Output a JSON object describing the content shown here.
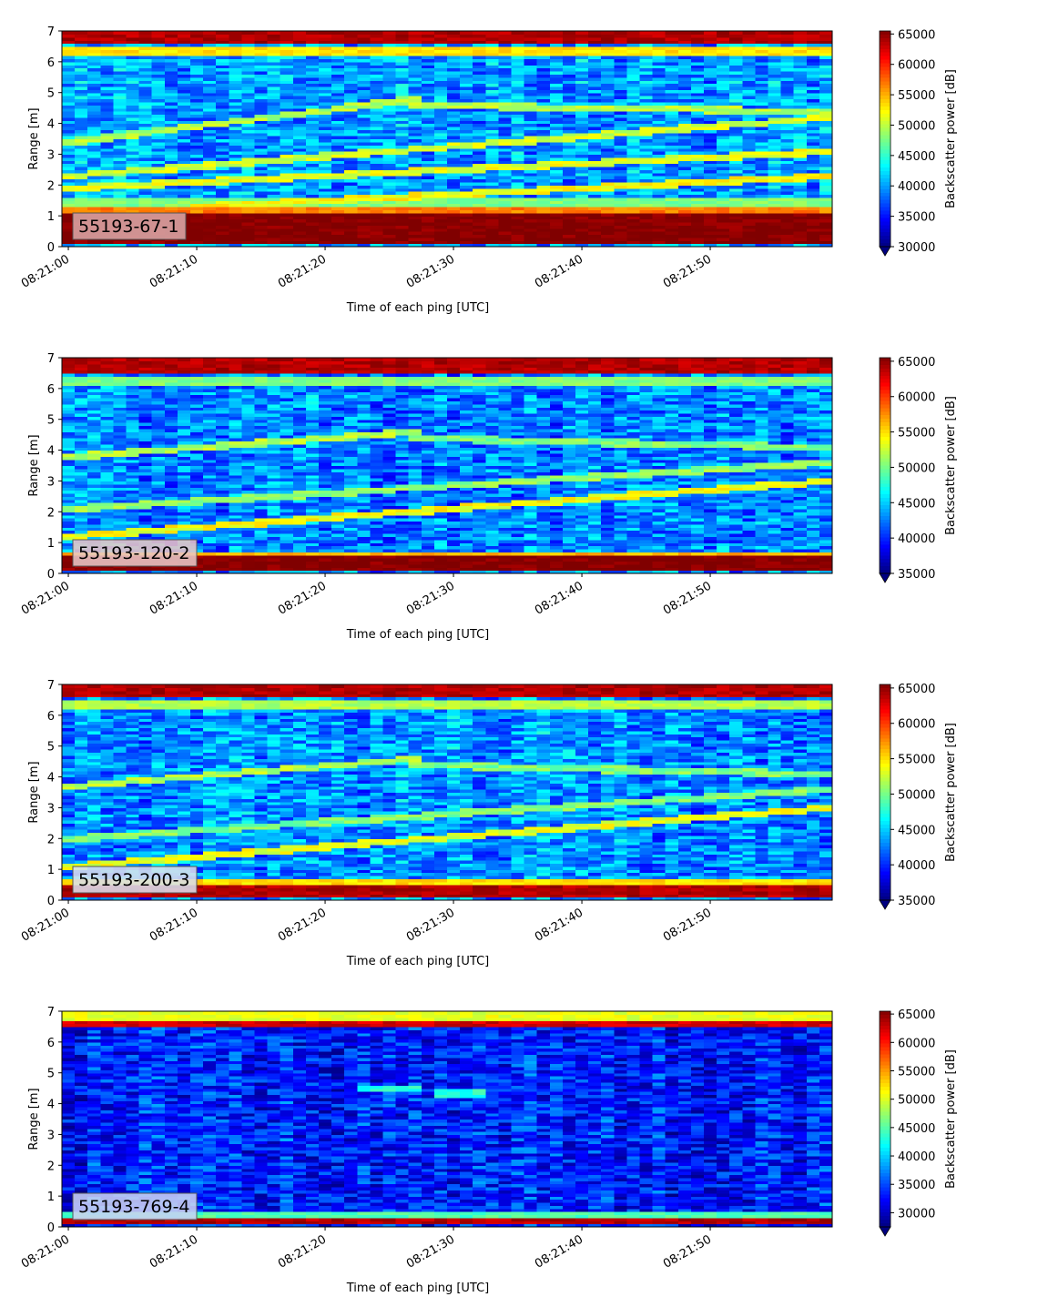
{
  "chart_data": [
    {
      "type": "heatmap",
      "label": "55193-67-1",
      "xlabel": "Time of each ping [UTC]",
      "ylabel": "Range [m]",
      "x_ticks": [
        "08:21:00",
        "08:21:10",
        "08:21:20",
        "08:21:30",
        "08:21:40",
        "08:21:50"
      ],
      "x_range": [
        "08:20:59.5",
        "08:21:59.5"
      ],
      "y_ticks": [
        0,
        1,
        2,
        3,
        4,
        5,
        6,
        7
      ],
      "ylim": [
        0,
        7
      ],
      "colorbar_label": "Backscatter power [dB]",
      "colorbar_ticks": [
        30000,
        35000,
        40000,
        45000,
        50000,
        55000,
        60000,
        65000
      ],
      "color_range": [
        30000,
        65500
      ],
      "colormap": "jet",
      "background_level": 0.28,
      "bands": [
        {
          "range_m": [
            0.1,
            1.1
          ],
          "level": 1.0
        },
        {
          "range_m": [
            6.6,
            7.0
          ],
          "level": 0.95
        },
        {
          "range_m": [
            6.25,
            6.55
          ],
          "level": 0.65
        },
        {
          "range_m": [
            1.1,
            1.35
          ],
          "level": 0.75
        },
        {
          "range_m": [
            1.35,
            1.55
          ],
          "level": 0.5
        }
      ],
      "tracks": [
        {
          "t": [
            0,
            59
          ],
          "range_m": [
            1.9,
            3.1
          ],
          "level": 0.6
        },
        {
          "t": [
            0,
            59
          ],
          "range_m": [
            2.3,
            4.2
          ],
          "level": 0.58
        },
        {
          "t": [
            0,
            27
          ],
          "range_m": [
            3.4,
            4.8
          ],
          "level": 0.55
        },
        {
          "t": [
            27,
            59
          ],
          "range_m": [
            4.6,
            4.4
          ],
          "level": 0.55
        },
        {
          "t": [
            10,
            59
          ],
          "range_m": [
            1.3,
            2.3
          ],
          "level": 0.62
        }
      ]
    },
    {
      "type": "heatmap",
      "label": "55193-120-2",
      "xlabel": "Time of each ping [UTC]",
      "ylabel": "Range [m]",
      "x_ticks": [
        "08:21:00",
        "08:21:10",
        "08:21:20",
        "08:21:30",
        "08:21:40",
        "08:21:50"
      ],
      "x_range": [
        "08:20:59.5",
        "08:21:59.5"
      ],
      "y_ticks": [
        0,
        1,
        2,
        3,
        4,
        5,
        6,
        7
      ],
      "ylim": [
        0,
        7
      ],
      "colorbar_label": "Backscatter power [dB]",
      "colorbar_ticks": [
        35000,
        40000,
        45000,
        50000,
        55000,
        60000,
        65000
      ],
      "color_range": [
        35000,
        65500
      ],
      "colormap": "jet",
      "background_level": 0.25,
      "bands": [
        {
          "range_m": [
            0.1,
            0.6
          ],
          "level": 1.0
        },
        {
          "range_m": [
            6.5,
            7.0
          ],
          "level": 0.95
        },
        {
          "range_m": [
            6.1,
            6.4
          ],
          "level": 0.5
        },
        {
          "range_m": [
            0.6,
            0.75
          ],
          "level": 0.7
        }
      ],
      "tracks": [
        {
          "t": [
            0,
            59
          ],
          "range_m": [
            1.2,
            3.0
          ],
          "level": 0.62
        },
        {
          "t": [
            0,
            27
          ],
          "range_m": [
            3.8,
            4.6
          ],
          "level": 0.55
        },
        {
          "t": [
            27,
            59
          ],
          "range_m": [
            4.4,
            4.1
          ],
          "level": 0.5
        },
        {
          "t": [
            0,
            59
          ],
          "range_m": [
            2.1,
            3.6
          ],
          "level": 0.52
        }
      ]
    },
    {
      "type": "heatmap",
      "label": "55193-200-3",
      "xlabel": "Time of each ping [UTC]",
      "ylabel": "Range [m]",
      "x_ticks": [
        "08:21:00",
        "08:21:10",
        "08:21:20",
        "08:21:30",
        "08:21:40",
        "08:21:50"
      ],
      "x_range": [
        "08:20:59.5",
        "08:21:59.5"
      ],
      "y_ticks": [
        0,
        1,
        2,
        3,
        4,
        5,
        6,
        7
      ],
      "ylim": [
        0,
        7
      ],
      "colorbar_label": "Backscatter power [dB]",
      "colorbar_ticks": [
        35000,
        40000,
        45000,
        50000,
        55000,
        60000,
        65000
      ],
      "color_range": [
        35000,
        65500
      ],
      "colormap": "jet",
      "background_level": 0.27,
      "bands": [
        {
          "range_m": [
            0.15,
            0.45
          ],
          "level": 0.95
        },
        {
          "range_m": [
            6.6,
            7.0
          ],
          "level": 0.95
        },
        {
          "range_m": [
            6.2,
            6.5
          ],
          "level": 0.55
        },
        {
          "range_m": [
            0.45,
            0.7
          ],
          "level": 0.65
        }
      ],
      "tracks": [
        {
          "t": [
            0,
            59
          ],
          "range_m": [
            1.1,
            3.0
          ],
          "level": 0.6
        },
        {
          "t": [
            0,
            27
          ],
          "range_m": [
            3.7,
            4.6
          ],
          "level": 0.55
        },
        {
          "t": [
            27,
            59
          ],
          "range_m": [
            4.4,
            4.1
          ],
          "level": 0.5
        },
        {
          "t": [
            0,
            59
          ],
          "range_m": [
            2.0,
            3.6
          ],
          "level": 0.5
        }
      ]
    },
    {
      "type": "heatmap",
      "label": "55193-769-4",
      "xlabel": "Time of each ping [UTC]",
      "ylabel": "Range [m]",
      "x_ticks": [
        "08:21:00",
        "08:21:10",
        "08:21:20",
        "08:21:30",
        "08:21:40",
        "08:21:50"
      ],
      "x_range": [
        "08:20:59.5",
        "08:21:59.5"
      ],
      "y_ticks": [
        0,
        1,
        2,
        3,
        4,
        5,
        6,
        7
      ],
      "ylim": [
        0,
        7
      ],
      "colorbar_label": "Backscatter power [dB]",
      "colorbar_ticks": [
        30000,
        35000,
        40000,
        45000,
        50000,
        55000,
        60000,
        65000
      ],
      "color_range": [
        27500,
        65500
      ],
      "colormap": "jet",
      "background_level": 0.15,
      "bands": [
        {
          "range_m": [
            0.1,
            0.3
          ],
          "level": 0.95
        },
        {
          "range_m": [
            6.55,
            6.75
          ],
          "level": 0.92
        },
        {
          "range_m": [
            6.75,
            7.0
          ],
          "level": 0.6
        },
        {
          "range_m": [
            0.3,
            0.5
          ],
          "level": 0.45
        }
      ],
      "tracks": [
        {
          "t": [
            23,
            27
          ],
          "range_m": [
            4.5,
            4.5
          ],
          "level": 0.42
        },
        {
          "t": [
            29,
            32
          ],
          "range_m": [
            4.35,
            4.35
          ],
          "level": 0.42
        }
      ]
    }
  ]
}
